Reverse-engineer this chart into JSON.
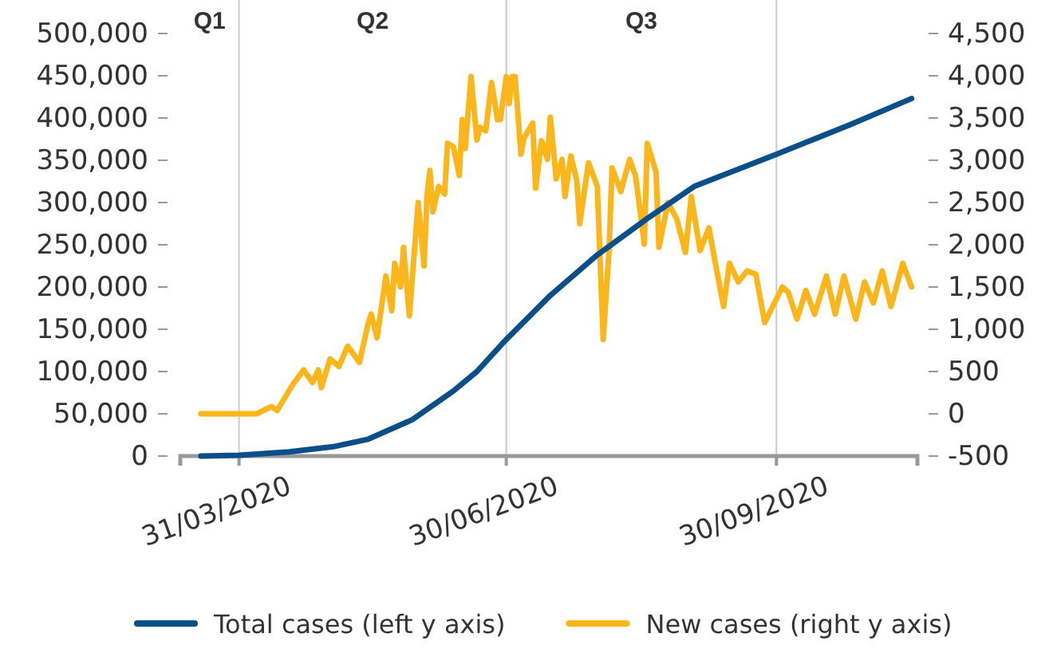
{
  "chart_data": {
    "type": "line",
    "annotations": [
      "Q1",
      "Q2",
      "Q3"
    ],
    "xlim": [
      "2020-03-11",
      "2020-11-17"
    ],
    "xticks": [
      {
        "value": "2020-03-31",
        "label": "31/03/2020"
      },
      {
        "value": "2020-06-30",
        "label": "30/06/2020"
      },
      {
        "value": "2020-09-30",
        "label": "30/09/2020"
      }
    ],
    "ylim": [
      0,
      500000
    ],
    "yticks": [
      0,
      {
        "value": 50000,
        "label": "50,000"
      },
      {
        "value": 100000,
        "label": "100,000"
      },
      {
        "value": 150000,
        "label": "150,000"
      },
      {
        "value": 200000,
        "label": "200,000"
      },
      {
        "value": 250000,
        "label": "250,000"
      },
      {
        "value": 300000,
        "label": "300,000"
      },
      {
        "value": 350000,
        "label": "350,000"
      },
      {
        "value": 400000,
        "label": "400,000"
      },
      {
        "value": 450000,
        "label": "450,000"
      },
      {
        "value": 500000,
        "label": "500,000"
      }
    ],
    "y2lim": [
      -500,
      4500
    ],
    "y2ticks": [
      -500,
      0,
      500,
      {
        "value": 1000,
        "label": "1,000"
      },
      {
        "value": 1500,
        "label": "1,500"
      },
      {
        "value": 2000,
        "label": "2,000"
      },
      {
        "value": 2500,
        "label": "2,500"
      },
      {
        "value": 3000,
        "label": "3,000"
      },
      {
        "value": 3500,
        "label": "3,500"
      },
      {
        "value": 4000,
        "label": "4,000"
      },
      {
        "value": 4500,
        "label": "4,500"
      }
    ],
    "grid": "x",
    "legend": "bottom",
    "series": [
      {
        "name": "Total cases (left y axis)",
        "color": "#0b4f8a",
        "x": [
          "2020-03-18",
          "2020-03-31",
          "2020-04-17",
          "2020-05-02",
          "2020-05-14",
          "2020-05-29",
          "2020-06-12",
          "2020-06-20",
          "2020-06-30",
          "2020-07-15",
          "2020-07-31",
          "2020-08-17",
          "2020-09-02",
          "2020-09-30",
          "2020-10-25",
          "2020-11-15"
        ],
        "values": [
          0,
          1000,
          5000,
          11000,
          20000,
          43000,
          77000,
          100000,
          138000,
          190000,
          238000,
          281000,
          319000,
          357000,
          392000,
          423000
        ]
      },
      {
        "name": "New cases (right y axis)",
        "color": "#fbb61b",
        "axis": "y2",
        "x": [
          "2020-03-18",
          "2020-04-06",
          "2020-04-11",
          "2020-04-13",
          "2020-04-18",
          "2020-04-22",
          "2020-04-25",
          "2020-04-27",
          "2020-04-28",
          "2020-05-01",
          "2020-05-04",
          "2020-05-07",
          "2020-05-11",
          "2020-05-14",
          "2020-05-15",
          "2020-05-17",
          "2020-05-20",
          "2020-05-22",
          "2020-05-23",
          "2020-05-25",
          "2020-05-26",
          "2020-05-28",
          "2020-05-31",
          "2020-06-02",
          "2020-06-03",
          "2020-06-04",
          "2020-06-05",
          "2020-06-07",
          "2020-06-09",
          "2020-06-10",
          "2020-06-12",
          "2020-06-14",
          "2020-06-15",
          "2020-06-16",
          "2020-06-18",
          "2020-06-20",
          "2020-06-21",
          "2020-06-23",
          "2020-06-25",
          "2020-06-27",
          "2020-06-28",
          "2020-06-30",
          "2020-07-01",
          "2020-07-02",
          "2020-07-03",
          "2020-07-05",
          "2020-07-06",
          "2020-07-09",
          "2020-07-10",
          "2020-07-12",
          "2020-07-14",
          "2020-07-15",
          "2020-07-17",
          "2020-07-19",
          "2020-07-20",
          "2020-07-22",
          "2020-07-24",
          "2020-07-25",
          "2020-07-28",
          "2020-07-31",
          "2020-08-02",
          "2020-08-04",
          "2020-08-05",
          "2020-08-08",
          "2020-08-11",
          "2020-08-13",
          "2020-08-16",
          "2020-08-17",
          "2020-08-20",
          "2020-08-21",
          "2020-08-24",
          "2020-08-27",
          "2020-08-30",
          "2020-09-01",
          "2020-09-04",
          "2020-09-07",
          "2020-09-09",
          "2020-09-12",
          "2020-09-14",
          "2020-09-17",
          "2020-09-20",
          "2020-09-23",
          "2020-09-26",
          "2020-10-02",
          "2020-10-04",
          "2020-10-07",
          "2020-10-10",
          "2020-10-13",
          "2020-10-17",
          "2020-10-20",
          "2020-10-23",
          "2020-10-27",
          "2020-10-30",
          "2020-11-02",
          "2020-11-05",
          "2020-11-08",
          "2020-11-12",
          "2020-11-15"
        ],
        "values": [
          0,
          0,
          85,
          40,
          330,
          520,
          370,
          520,
          310,
          650,
          560,
          800,
          610,
          1070,
          1180,
          900,
          1630,
          1220,
          1780,
          1500,
          1970,
          1160,
          2500,
          1750,
          2575,
          2880,
          2390,
          2690,
          2600,
          3200,
          3160,
          2820,
          3480,
          3140,
          3990,
          3240,
          3390,
          3350,
          3920,
          3480,
          3480,
          3990,
          3670,
          3990,
          3990,
          3070,
          3260,
          3440,
          2670,
          3230,
          3010,
          3510,
          2780,
          3010,
          2570,
          3050,
          2760,
          2250,
          2970,
          2690,
          880,
          1930,
          2910,
          2630,
          3010,
          2820,
          2010,
          3200,
          2860,
          1970,
          2500,
          2310,
          1910,
          2570,
          1930,
          2200,
          1820,
          1270,
          1780,
          1560,
          1690,
          1650,
          1080,
          1500,
          1440,
          1120,
          1460,
          1180,
          1630,
          1180,
          1630,
          1120,
          1560,
          1310,
          1690,
          1270,
          1780,
          1500
        ]
      }
    ]
  }
}
